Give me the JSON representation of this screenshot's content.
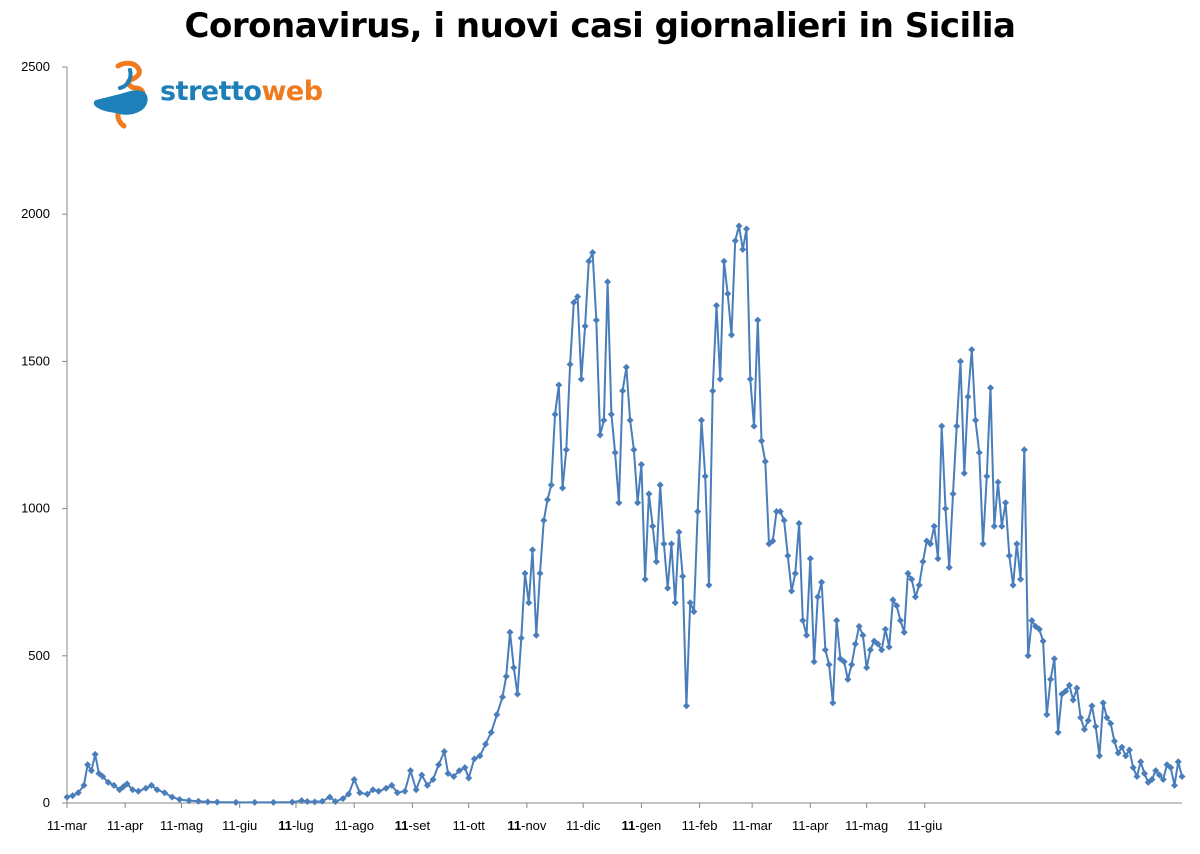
{
  "chart_data": {
    "type": "line",
    "title": "Coronavirus, i nuovi casi giornalieri in Sicilia",
    "xlabel": "",
    "ylabel": "",
    "ylim": [
      0,
      2500
    ],
    "yticks": [
      0,
      500,
      1000,
      1500,
      2000,
      2500
    ],
    "grid": false,
    "legend": "none",
    "xticks": [
      {
        "label": "11-mar",
        "day": 0,
        "bold": false
      },
      {
        "label": "11-apr",
        "day": 31,
        "bold": false
      },
      {
        "label": "11-mag",
        "day": 61,
        "bold": false
      },
      {
        "label": "11-giu",
        "day": 92,
        "bold": false
      },
      {
        "label": "11-lug",
        "day": 122,
        "bold": true
      },
      {
        "label": "11-ago",
        "day": 153,
        "bold": false
      },
      {
        "label": "11-set",
        "day": 184,
        "bold": true
      },
      {
        "label": "11-ott",
        "day": 214,
        "bold": false
      },
      {
        "label": "11-nov",
        "day": 245,
        "bold": true
      },
      {
        "label": "11-dic",
        "day": 275,
        "bold": false
      },
      {
        "label": "11-gen",
        "day": 306,
        "bold": true
      },
      {
        "label": "11-feb",
        "day": 337,
        "bold": false
      },
      {
        "label": "11-mar",
        "day": 365,
        "bold": false
      },
      {
        "label": "11-apr",
        "day": 396,
        "bold": false
      },
      {
        "label": "11-mag",
        "day": 426,
        "bold": false
      },
      {
        "label": "11-giu",
        "day": 457,
        "bold": false
      }
    ],
    "series": [
      {
        "color": "#4a7ebb",
        "points": [
          [
            0,
            20
          ],
          [
            3,
            25
          ],
          [
            6,
            35
          ],
          [
            9,
            60
          ],
          [
            11,
            130
          ],
          [
            13,
            110
          ],
          [
            15,
            165
          ],
          [
            17,
            100
          ],
          [
            19,
            90
          ],
          [
            22,
            70
          ],
          [
            25,
            60
          ],
          [
            28,
            45
          ],
          [
            30,
            55
          ],
          [
            32,
            65
          ],
          [
            35,
            45
          ],
          [
            38,
            40
          ],
          [
            42,
            50
          ],
          [
            45,
            60
          ],
          [
            48,
            45
          ],
          [
            52,
            35
          ],
          [
            56,
            20
          ],
          [
            60,
            12
          ],
          [
            65,
            8
          ],
          [
            70,
            6
          ],
          [
            75,
            4
          ],
          [
            80,
            3
          ],
          [
            90,
            2
          ],
          [
            100,
            2
          ],
          [
            110,
            2
          ],
          [
            120,
            3
          ],
          [
            125,
            8
          ],
          [
            128,
            5
          ],
          [
            132,
            4
          ],
          [
            136,
            6
          ],
          [
            140,
            20
          ],
          [
            143,
            5
          ],
          [
            147,
            15
          ],
          [
            150,
            30
          ],
          [
            153,
            80
          ],
          [
            156,
            35
          ],
          [
            160,
            30
          ],
          [
            163,
            45
          ],
          [
            166,
            40
          ],
          [
            170,
            50
          ],
          [
            173,
            60
          ],
          [
            176,
            35
          ],
          [
            180,
            40
          ],
          [
            183,
            110
          ],
          [
            186,
            45
          ],
          [
            189,
            95
          ],
          [
            192,
            60
          ],
          [
            195,
            80
          ],
          [
            198,
            130
          ],
          [
            201,
            175
          ],
          [
            203,
            100
          ],
          [
            206,
            90
          ],
          [
            209,
            110
          ],
          [
            212,
            120
          ],
          [
            214,
            85
          ],
          [
            217,
            150
          ],
          [
            220,
            160
          ],
          [
            223,
            200
          ],
          [
            226,
            240
          ],
          [
            229,
            300
          ],
          [
            232,
            360
          ],
          [
            234,
            430
          ],
          [
            236,
            580
          ],
          [
            238,
            460
          ],
          [
            240,
            370
          ],
          [
            242,
            560
          ],
          [
            244,
            780
          ],
          [
            246,
            680
          ],
          [
            248,
            860
          ],
          [
            250,
            570
          ],
          [
            252,
            780
          ],
          [
            254,
            960
          ],
          [
            256,
            1030
          ],
          [
            258,
            1080
          ],
          [
            260,
            1320
          ],
          [
            262,
            1420
          ],
          [
            264,
            1070
          ],
          [
            266,
            1200
          ],
          [
            268,
            1490
          ],
          [
            270,
            1700
          ],
          [
            272,
            1720
          ],
          [
            274,
            1440
          ],
          [
            276,
            1620
          ],
          [
            278,
            1840
          ],
          [
            280,
            1870
          ],
          [
            282,
            1640
          ],
          [
            284,
            1250
          ],
          [
            286,
            1300
          ],
          [
            288,
            1770
          ],
          [
            290,
            1320
          ],
          [
            292,
            1190
          ],
          [
            294,
            1020
          ],
          [
            296,
            1400
          ],
          [
            298,
            1480
          ],
          [
            300,
            1300
          ],
          [
            302,
            1200
          ],
          [
            304,
            1020
          ],
          [
            306,
            1150
          ],
          [
            308,
            760
          ],
          [
            310,
            1050
          ],
          [
            312,
            940
          ],
          [
            314,
            820
          ],
          [
            316,
            1080
          ],
          [
            318,
            880
          ],
          [
            320,
            730
          ],
          [
            322,
            880
          ],
          [
            324,
            680
          ],
          [
            326,
            920
          ],
          [
            328,
            770
          ],
          [
            330,
            330
          ],
          [
            332,
            680
          ],
          [
            334,
            650
          ],
          [
            336,
            990
          ],
          [
            338,
            1300
          ],
          [
            340,
            1110
          ],
          [
            342,
            740
          ],
          [
            344,
            1400
          ],
          [
            346,
            1690
          ],
          [
            348,
            1440
          ],
          [
            350,
            1840
          ],
          [
            352,
            1730
          ],
          [
            354,
            1590
          ],
          [
            356,
            1910
          ],
          [
            358,
            1960
          ],
          [
            360,
            1880
          ],
          [
            362,
            1950
          ],
          [
            364,
            1440
          ],
          [
            366,
            1280
          ],
          [
            368,
            1640
          ],
          [
            370,
            1230
          ],
          [
            372,
            1160
          ],
          [
            374,
            880
          ],
          [
            376,
            890
          ],
          [
            378,
            990
          ],
          [
            380,
            990
          ],
          [
            382,
            960
          ],
          [
            384,
            840
          ],
          [
            386,
            720
          ],
          [
            388,
            780
          ],
          [
            390,
            950
          ],
          [
            392,
            620
          ],
          [
            394,
            570
          ],
          [
            396,
            830
          ],
          [
            398,
            480
          ],
          [
            400,
            700
          ],
          [
            402,
            750
          ],
          [
            404,
            520
          ],
          [
            406,
            470
          ],
          [
            408,
            340
          ],
          [
            410,
            620
          ],
          [
            412,
            490
          ],
          [
            414,
            480
          ],
          [
            416,
            420
          ],
          [
            418,
            470
          ],
          [
            420,
            540
          ],
          [
            422,
            600
          ],
          [
            424,
            570
          ],
          [
            426,
            460
          ],
          [
            428,
            520
          ],
          [
            430,
            550
          ],
          [
            432,
            540
          ],
          [
            434,
            520
          ],
          [
            436,
            590
          ],
          [
            438,
            530
          ],
          [
            440,
            690
          ],
          [
            442,
            670
          ],
          [
            444,
            620
          ],
          [
            446,
            580
          ],
          [
            448,
            780
          ],
          [
            450,
            760
          ],
          [
            452,
            700
          ],
          [
            454,
            740
          ],
          [
            456,
            820
          ],
          [
            458,
            890
          ],
          [
            460,
            880
          ],
          [
            462,
            940
          ],
          [
            464,
            830
          ],
          [
            466,
            1280
          ],
          [
            468,
            1000
          ],
          [
            470,
            800
          ],
          [
            472,
            1050
          ],
          [
            474,
            1280
          ],
          [
            476,
            1500
          ],
          [
            478,
            1120
          ],
          [
            480,
            1380
          ],
          [
            482,
            1540
          ],
          [
            484,
            1300
          ],
          [
            486,
            1190
          ],
          [
            488,
            880
          ],
          [
            490,
            1110
          ],
          [
            492,
            1410
          ],
          [
            494,
            940
          ],
          [
            496,
            1090
          ],
          [
            498,
            940
          ],
          [
            500,
            1020
          ],
          [
            502,
            840
          ],
          [
            504,
            740
          ],
          [
            506,
            880
          ],
          [
            508,
            760
          ],
          [
            510,
            1200
          ],
          [
            512,
            500
          ],
          [
            514,
            620
          ],
          [
            516,
            600
          ],
          [
            518,
            590
          ],
          [
            520,
            550
          ],
          [
            522,
            300
          ],
          [
            524,
            420
          ],
          [
            526,
            490
          ],
          [
            528,
            240
          ],
          [
            530,
            370
          ],
          [
            532,
            380
          ],
          [
            534,
            400
          ],
          [
            536,
            350
          ],
          [
            538,
            390
          ],
          [
            540,
            290
          ],
          [
            542,
            250
          ],
          [
            544,
            280
          ],
          [
            546,
            330
          ],
          [
            548,
            260
          ],
          [
            550,
            160
          ],
          [
            552,
            340
          ],
          [
            554,
            290
          ],
          [
            556,
            270
          ],
          [
            558,
            210
          ],
          [
            560,
            170
          ],
          [
            562,
            190
          ],
          [
            564,
            160
          ],
          [
            566,
            180
          ],
          [
            568,
            120
          ],
          [
            570,
            90
          ],
          [
            572,
            140
          ],
          [
            574,
            100
          ],
          [
            576,
            70
          ],
          [
            578,
            80
          ],
          [
            580,
            110
          ],
          [
            582,
            95
          ],
          [
            584,
            80
          ],
          [
            586,
            130
          ],
          [
            588,
            120
          ],
          [
            590,
            60
          ],
          [
            592,
            140
          ],
          [
            594,
            90
          ]
        ]
      }
    ]
  },
  "watermark": {
    "brand_part1": "stretto",
    "brand_part2": "web"
  }
}
